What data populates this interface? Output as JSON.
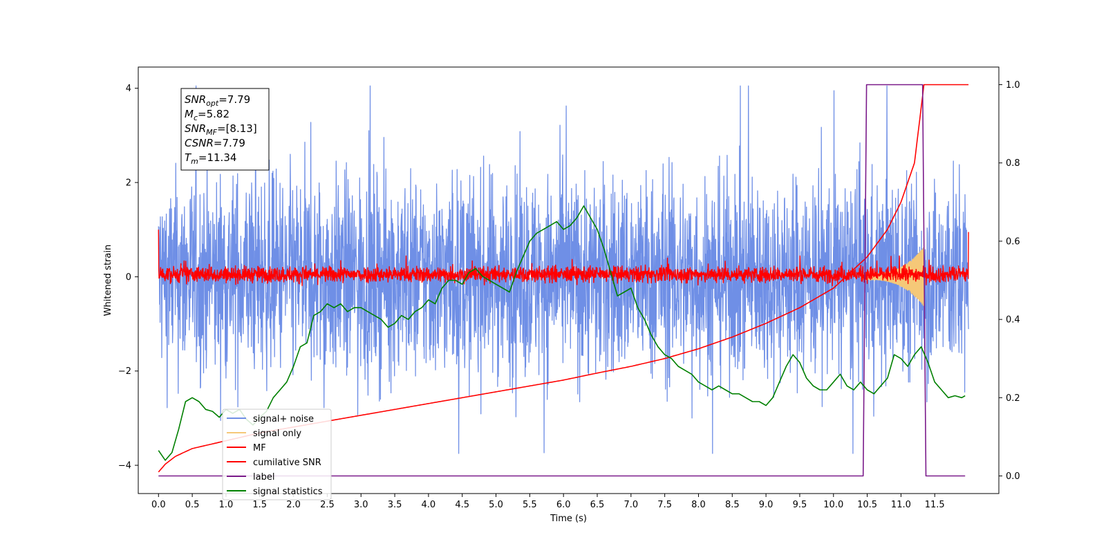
{
  "chart_data": {
    "type": "line",
    "xlabel": "Time (s)",
    "ylabel_left": "Whitened strain",
    "ylabel_right": "",
    "xlim": [
      -0.3,
      12.45
    ],
    "ylim_left": [
      -4.6,
      4.45
    ],
    "ylim_right": [
      -0.045,
      1.045
    ],
    "x_ticks": [
      "0.0",
      "0.5",
      "1.0",
      "1.5",
      "2.0",
      "2.5",
      "3.0",
      "3.5",
      "4.0",
      "4.5",
      "5.0",
      "5.5",
      "6.0",
      "6.5",
      "7.0",
      "7.5",
      "8.0",
      "8.5",
      "9.0",
      "9.5",
      "10.0",
      "10.5",
      "11.0",
      "11.5"
    ],
    "y_ticks_left": [
      "−4",
      "−2",
      "0",
      "2",
      "4"
    ],
    "y_ticks_right": [
      "0.0",
      "0.2",
      "0.4",
      "0.6",
      "0.8",
      "1.0"
    ],
    "grid": false,
    "legend_position": "lower-left",
    "annotation": {
      "lines": [
        {
          "sym": "SNR",
          "sub": "opt",
          "val": "=7.79"
        },
        {
          "sym": "M",
          "sub": "c",
          "val": "=5.82"
        },
        {
          "sym": "SNR",
          "sub": "MF",
          "val": "=[8.13]"
        },
        {
          "sym": "CSNR",
          "sub": "",
          "val": "=7.79"
        },
        {
          "sym": "T",
          "sub": "m",
          "val": "=11.34"
        }
      ]
    },
    "series": [
      {
        "name": "signal+ noise",
        "color": "#6f8fe6",
        "axis": "left",
        "kind": "noise_band",
        "time_range": [
          0.0,
          12.0
        ],
        "approx_amplitude_range": [
          -3.75,
          4.05
        ]
      },
      {
        "name": "signal only",
        "color": "#f5c878",
        "axis": "left",
        "kind": "chirp",
        "time_range": [
          10.4,
          11.34
        ],
        "peak_amplitude": 0.58
      },
      {
        "name": "MF",
        "color": "#ff0000",
        "axis": "left",
        "kind": "noise_band",
        "time_range": [
          0.0,
          12.0
        ],
        "approx_amplitude_range": [
          -0.2,
          0.45
        ]
      },
      {
        "name": "cumilative SNR",
        "color": "#ff0000",
        "axis": "right",
        "x": [
          0.0,
          0.1,
          0.25,
          0.5,
          1.0,
          1.5,
          2.0,
          2.5,
          3.0,
          3.5,
          4.0,
          4.5,
          5.0,
          5.5,
          6.0,
          6.5,
          7.0,
          7.5,
          8.0,
          8.5,
          9.0,
          9.5,
          10.0,
          10.5,
          10.8,
          11.0,
          11.2,
          11.34,
          12.0
        ],
        "values": [
          0.01,
          0.03,
          0.05,
          0.07,
          0.09,
          0.11,
          0.125,
          0.14,
          0.155,
          0.17,
          0.185,
          0.2,
          0.215,
          0.23,
          0.245,
          0.263,
          0.28,
          0.3,
          0.325,
          0.355,
          0.39,
          0.43,
          0.48,
          0.56,
          0.63,
          0.7,
          0.8,
          1.0,
          1.0
        ]
      },
      {
        "name": "label",
        "color": "#7a1a8a",
        "axis": "right",
        "x": [
          0.0,
          10.44,
          10.49,
          11.32,
          11.37,
          11.95
        ],
        "values": [
          0.0,
          0.0,
          1.0,
          1.0,
          0.0,
          0.0
        ]
      },
      {
        "name": "signal statistics",
        "color": "#008000",
        "axis": "right",
        "x": [
          0.0,
          0.1,
          0.2,
          0.3,
          0.4,
          0.5,
          0.6,
          0.7,
          0.8,
          0.9,
          1.0,
          1.1,
          1.2,
          1.3,
          1.4,
          1.5,
          1.6,
          1.7,
          1.8,
          1.9,
          2.0,
          2.1,
          2.2,
          2.3,
          2.4,
          2.5,
          2.6,
          2.7,
          2.8,
          2.9,
          3.0,
          3.1,
          3.2,
          3.3,
          3.4,
          3.5,
          3.6,
          3.7,
          3.8,
          3.9,
          4.0,
          4.1,
          4.2,
          4.3,
          4.4,
          4.5,
          4.6,
          4.7,
          4.8,
          4.9,
          5.0,
          5.1,
          5.2,
          5.3,
          5.4,
          5.5,
          5.6,
          5.7,
          5.8,
          5.9,
          6.0,
          6.1,
          6.2,
          6.3,
          6.4,
          6.5,
          6.6,
          6.7,
          6.8,
          6.9,
          7.0,
          7.1,
          7.2,
          7.3,
          7.4,
          7.5,
          7.6,
          7.7,
          7.8,
          7.9,
          8.0,
          8.1,
          8.2,
          8.3,
          8.4,
          8.5,
          8.6,
          8.7,
          8.8,
          8.9,
          9.0,
          9.1,
          9.2,
          9.3,
          9.4,
          9.5,
          9.6,
          9.7,
          9.8,
          9.9,
          10.0,
          10.1,
          10.2,
          10.3,
          10.4,
          10.5,
          10.6,
          10.7,
          10.8,
          10.9,
          11.0,
          11.1,
          11.2,
          11.3,
          11.4,
          11.5,
          11.6,
          11.7,
          11.8,
          11.9,
          11.95
        ],
        "values": [
          0.065,
          0.04,
          0.06,
          0.12,
          0.19,
          0.2,
          0.19,
          0.17,
          0.165,
          0.15,
          0.17,
          0.16,
          0.17,
          0.145,
          0.13,
          0.15,
          0.165,
          0.2,
          0.22,
          0.24,
          0.28,
          0.33,
          0.34,
          0.41,
          0.42,
          0.44,
          0.43,
          0.44,
          0.42,
          0.43,
          0.43,
          0.42,
          0.41,
          0.4,
          0.38,
          0.39,
          0.41,
          0.4,
          0.42,
          0.43,
          0.45,
          0.44,
          0.48,
          0.5,
          0.5,
          0.49,
          0.52,
          0.53,
          0.51,
          0.5,
          0.49,
          0.48,
          0.47,
          0.52,
          0.56,
          0.6,
          0.62,
          0.63,
          0.64,
          0.65,
          0.63,
          0.64,
          0.66,
          0.69,
          0.66,
          0.63,
          0.58,
          0.52,
          0.46,
          0.47,
          0.48,
          0.43,
          0.4,
          0.36,
          0.33,
          0.31,
          0.3,
          0.28,
          0.27,
          0.26,
          0.24,
          0.23,
          0.22,
          0.23,
          0.22,
          0.21,
          0.21,
          0.2,
          0.19,
          0.19,
          0.18,
          0.2,
          0.24,
          0.28,
          0.31,
          0.29,
          0.25,
          0.23,
          0.22,
          0.22,
          0.24,
          0.26,
          0.23,
          0.22,
          0.24,
          0.22,
          0.21,
          0.23,
          0.25,
          0.31,
          0.3,
          0.28,
          0.31,
          0.33,
          0.29,
          0.24,
          0.22,
          0.2,
          0.205,
          0.2,
          0.205
        ]
      }
    ]
  }
}
